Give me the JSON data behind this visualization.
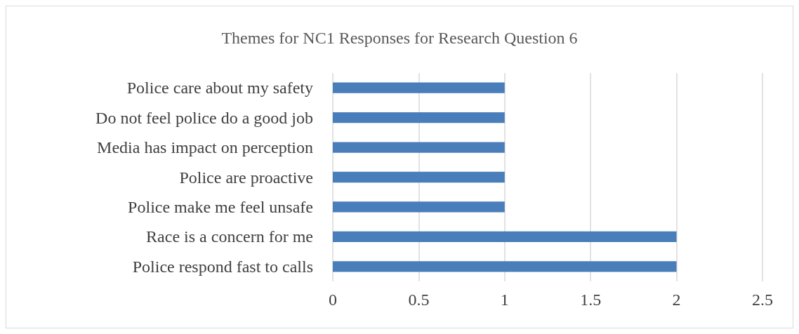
{
  "chart_data": {
    "type": "bar",
    "orientation": "horizontal",
    "title": "Themes for NC1 Responses for Research Question 6",
    "categories": [
      "Police care about my safety",
      "Do not feel police do a good job",
      "Media has impact on perception",
      "Police are proactive",
      "Police make me feel unsafe",
      "Race is a concern for me",
      "Police respond fast to calls"
    ],
    "values": [
      1,
      1,
      1,
      1,
      1,
      2,
      2
    ],
    "color": "#4a7ebb",
    "xlim": [
      0,
      2.5
    ],
    "xticks": [
      0,
      0.5,
      1,
      1.5,
      2,
      2.5
    ],
    "grid": "x"
  }
}
